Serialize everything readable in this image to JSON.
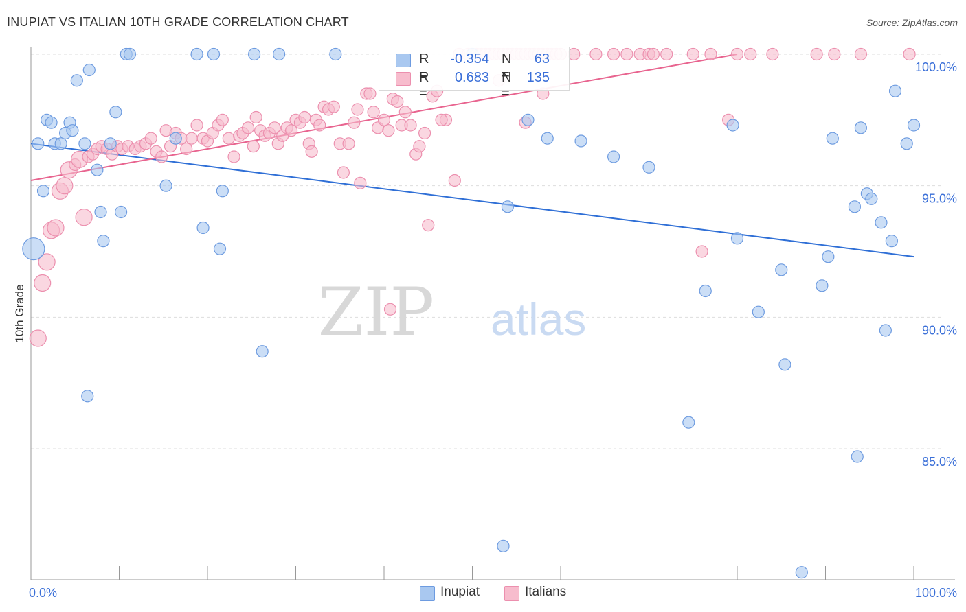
{
  "title": "INUPIAT VS ITALIAN 10TH GRADE CORRELATION CHART",
  "source": "Source: ZipAtlas.com",
  "colors": {
    "inupiat_fill": "#a9c8f0",
    "inupiat_stroke": "#6d9be0",
    "inupiat_line": "#2f6fd6",
    "italians_fill": "#f7bccd",
    "italians_stroke": "#ec8fae",
    "italians_line": "#e8648f",
    "axis_label": "#3a6fd8",
    "grid": "#dddddd"
  },
  "legend": {
    "rows": [
      {
        "r_label": "R =",
        "r_value": "-0.354",
        "n_label": "N =",
        "n_value": "63"
      },
      {
        "r_label": "R =",
        "r_value": "0.683",
        "n_label": "N =",
        "n_value": "135"
      }
    ]
  },
  "bottom_legend": {
    "items": [
      "Inupiat",
      "Italians"
    ]
  },
  "watermark": {
    "part1": "ZIP",
    "part2": "atlas"
  },
  "chart_data": {
    "type": "scatter",
    "title": "INUPIAT VS ITALIAN 10TH GRADE CORRELATION CHART",
    "xlabel": "",
    "ylabel": "10th Grade",
    "xlim": [
      0,
      100
    ],
    "ylim": [
      80.5,
      100.5
    ],
    "x_tick_labels": [
      "0.0%",
      "100.0%"
    ],
    "y_ticks": [
      85,
      90,
      95,
      100
    ],
    "y_tick_labels": [
      "85.0%",
      "90.0%",
      "95.0%",
      "100.0%"
    ],
    "grid": true,
    "series": [
      {
        "name": "Inupiat",
        "R": -0.354,
        "N": 63,
        "trend": [
          [
            0,
            96.6
          ],
          [
            100,
            92.3
          ]
        ],
        "points": [
          [
            0.3,
            92.6,
            3
          ],
          [
            0.8,
            96.6,
            1
          ],
          [
            1.4,
            94.8,
            1
          ],
          [
            1.8,
            97.5,
            1
          ],
          [
            2.3,
            97.4,
            1
          ],
          [
            2.7,
            96.6,
            1
          ],
          [
            3.4,
            96.6,
            1
          ],
          [
            3.9,
            97.0,
            1
          ],
          [
            4.4,
            97.4,
            1
          ],
          [
            4.7,
            97.1,
            1
          ],
          [
            5.2,
            99.0,
            1
          ],
          [
            6.1,
            96.6,
            1
          ],
          [
            6.4,
            87.0,
            1
          ],
          [
            6.6,
            99.4,
            1
          ],
          [
            7.5,
            95.6,
            1
          ],
          [
            7.9,
            94.0,
            1
          ],
          [
            8.2,
            92.9,
            1
          ],
          [
            9.0,
            96.6,
            1
          ],
          [
            9.6,
            97.8,
            1
          ],
          [
            10.2,
            94.0,
            1
          ],
          [
            10.8,
            100.0,
            1
          ],
          [
            11.2,
            100.0,
            1
          ],
          [
            15.3,
            95.0,
            1
          ],
          [
            16.4,
            96.8,
            1
          ],
          [
            18.8,
            100.0,
            1
          ],
          [
            19.5,
            93.4,
            1
          ],
          [
            20.7,
            100.0,
            1
          ],
          [
            21.4,
            92.6,
            1
          ],
          [
            21.7,
            94.8,
            1
          ],
          [
            25.3,
            100.0,
            1
          ],
          [
            26.2,
            88.7,
            1
          ],
          [
            28.1,
            100.0,
            1
          ],
          [
            34.5,
            100.0,
            1
          ],
          [
            50.0,
            100.0,
            1
          ],
          [
            53.5,
            81.3,
            1
          ],
          [
            54.0,
            94.2,
            1
          ],
          [
            56.3,
            97.5,
            1
          ],
          [
            58.5,
            96.8,
            1
          ],
          [
            62.3,
            96.7,
            1
          ],
          [
            66.0,
            96.1,
            1
          ],
          [
            70.0,
            95.7,
            1
          ],
          [
            74.5,
            86.0,
            1
          ],
          [
            76.4,
            91.0,
            1
          ],
          [
            79.5,
            97.3,
            1
          ],
          [
            80.0,
            93.0,
            1
          ],
          [
            82.4,
            90.2,
            1
          ],
          [
            85.0,
            91.8,
            1
          ],
          [
            85.4,
            88.2,
            1
          ],
          [
            87.3,
            80.3,
            1
          ],
          [
            89.6,
            91.2,
            1
          ],
          [
            90.3,
            92.3,
            1
          ],
          [
            90.8,
            96.8,
            1
          ],
          [
            93.3,
            94.2,
            1
          ],
          [
            93.6,
            84.7,
            1
          ],
          [
            94.0,
            97.2,
            1
          ],
          [
            94.7,
            94.7,
            1
          ],
          [
            95.2,
            94.5,
            1
          ],
          [
            96.3,
            93.6,
            1
          ],
          [
            96.8,
            89.5,
            1
          ],
          [
            97.5,
            92.9,
            1
          ],
          [
            97.9,
            98.6,
            1
          ],
          [
            99.2,
            96.6,
            1
          ],
          [
            100.0,
            97.3,
            1
          ]
        ]
      },
      {
        "name": "Italians",
        "R": 0.683,
        "N": 135,
        "trend": [
          [
            0,
            95.2
          ],
          [
            80,
            100.0
          ]
        ],
        "points": [
          [
            0.8,
            89.2,
            2
          ],
          [
            1.3,
            91.3,
            2
          ],
          [
            1.8,
            92.1,
            2
          ],
          [
            2.3,
            93.3,
            2
          ],
          [
            2.8,
            93.4,
            2
          ],
          [
            3.3,
            94.8,
            2
          ],
          [
            3.8,
            95.0,
            2
          ],
          [
            4.3,
            95.6,
            2
          ],
          [
            5.0,
            95.8,
            1
          ],
          [
            5.5,
            96.0,
            2
          ],
          [
            6.0,
            93.8,
            2
          ],
          [
            6.5,
            96.1,
            1
          ],
          [
            7.0,
            96.2,
            1
          ],
          [
            7.5,
            96.4,
            1
          ],
          [
            8.0,
            96.5,
            1
          ],
          [
            8.6,
            96.4,
            1
          ],
          [
            9.2,
            96.2,
            1
          ],
          [
            9.8,
            96.5,
            1
          ],
          [
            10.3,
            96.4,
            1
          ],
          [
            11.0,
            96.5,
            1
          ],
          [
            11.8,
            96.4,
            1
          ],
          [
            12.4,
            96.5,
            1
          ],
          [
            13.0,
            96.6,
            1
          ],
          [
            13.6,
            96.8,
            1
          ],
          [
            14.2,
            96.3,
            1
          ],
          [
            14.8,
            96.1,
            1
          ],
          [
            15.3,
            97.1,
            1
          ],
          [
            15.8,
            96.5,
            1
          ],
          [
            16.4,
            97.0,
            1
          ],
          [
            17.0,
            96.8,
            1
          ],
          [
            17.6,
            96.4,
            1
          ],
          [
            18.2,
            96.8,
            1
          ],
          [
            18.8,
            97.3,
            1
          ],
          [
            19.5,
            96.8,
            1
          ],
          [
            20.0,
            96.7,
            1
          ],
          [
            20.6,
            97.0,
            1
          ],
          [
            21.2,
            97.3,
            1
          ],
          [
            21.7,
            97.5,
            1
          ],
          [
            22.4,
            96.8,
            1
          ],
          [
            23.0,
            96.1,
            1
          ],
          [
            23.6,
            96.9,
            1
          ],
          [
            24.0,
            97.0,
            1
          ],
          [
            24.6,
            97.2,
            1
          ],
          [
            25.2,
            96.5,
            1
          ],
          [
            25.5,
            97.6,
            1
          ],
          [
            26.0,
            97.1,
            1
          ],
          [
            26.5,
            96.9,
            1
          ],
          [
            27.0,
            97.0,
            1
          ],
          [
            27.6,
            97.2,
            1
          ],
          [
            28.0,
            96.6,
            1
          ],
          [
            28.5,
            96.9,
            1
          ],
          [
            29.0,
            97.2,
            1
          ],
          [
            29.5,
            97.1,
            1
          ],
          [
            30.0,
            97.5,
            1
          ],
          [
            30.5,
            97.4,
            1
          ],
          [
            31.0,
            97.6,
            1
          ],
          [
            31.5,
            96.6,
            1
          ],
          [
            31.8,
            96.3,
            1
          ],
          [
            32.3,
            97.5,
            1
          ],
          [
            32.7,
            97.3,
            1
          ],
          [
            33.2,
            98.0,
            1
          ],
          [
            33.7,
            97.9,
            1
          ],
          [
            34.3,
            98.0,
            1
          ],
          [
            35.0,
            96.6,
            1
          ],
          [
            35.4,
            95.5,
            1
          ],
          [
            36.0,
            96.6,
            1
          ],
          [
            36.6,
            97.4,
            1
          ],
          [
            37.0,
            97.9,
            1
          ],
          [
            37.3,
            95.1,
            1
          ],
          [
            38.0,
            98.5,
            1
          ],
          [
            38.4,
            98.5,
            1
          ],
          [
            38.8,
            97.8,
            1
          ],
          [
            39.3,
            97.2,
            1
          ],
          [
            40.0,
            97.5,
            1
          ],
          [
            40.5,
            97.1,
            1
          ],
          [
            41.0,
            98.3,
            1
          ],
          [
            41.5,
            98.2,
            1
          ],
          [
            42.0,
            97.3,
            1
          ],
          [
            42.4,
            97.8,
            1
          ],
          [
            43.0,
            97.3,
            1
          ],
          [
            43.6,
            96.2,
            1
          ],
          [
            44.0,
            96.5,
            1
          ],
          [
            44.6,
            97.0,
            1
          ],
          [
            45.0,
            93.5,
            1
          ],
          [
            45.5,
            98.4,
            1
          ],
          [
            46.0,
            98.6,
            1
          ],
          [
            47.0,
            97.5,
            1
          ],
          [
            48.0,
            95.2,
            1
          ],
          [
            48.5,
            100.0,
            1
          ],
          [
            49.5,
            100.0,
            1
          ],
          [
            50.0,
            100.0,
            1
          ],
          [
            50.5,
            100.0,
            1
          ],
          [
            51.0,
            100.0,
            1
          ],
          [
            51.5,
            100.0,
            1
          ],
          [
            52.0,
            100.0,
            1
          ],
          [
            52.5,
            100.0,
            1
          ],
          [
            53.0,
            100.0,
            1
          ],
          [
            53.5,
            100.0,
            1
          ],
          [
            54.0,
            100.0,
            1
          ],
          [
            54.5,
            100.0,
            1
          ],
          [
            55.0,
            100.0,
            1
          ],
          [
            55.5,
            100.0,
            1
          ],
          [
            56.0,
            100.0,
            1
          ],
          [
            56.5,
            100.0,
            1
          ],
          [
            57.0,
            100.0,
            1
          ],
          [
            57.5,
            100.0,
            1
          ],
          [
            58.0,
            100.0,
            1
          ],
          [
            58.5,
            100.0,
            1
          ],
          [
            59.0,
            100.0,
            1
          ],
          [
            59.5,
            100.0,
            1
          ],
          [
            60.0,
            100.0,
            1
          ],
          [
            61.5,
            100.0,
            1
          ],
          [
            64.0,
            100.0,
            1
          ],
          [
            66.0,
            100.0,
            1
          ],
          [
            67.5,
            100.0,
            1
          ],
          [
            69.0,
            100.0,
            1
          ],
          [
            70.0,
            100.0,
            1
          ],
          [
            70.5,
            100.0,
            1
          ],
          [
            72.0,
            100.0,
            1
          ],
          [
            75.0,
            100.0,
            1
          ],
          [
            77.0,
            100.0,
            1
          ],
          [
            79.0,
            97.5,
            1
          ],
          [
            80.0,
            100.0,
            1
          ],
          [
            81.5,
            100.0,
            1
          ],
          [
            84.0,
            100.0,
            1
          ],
          [
            89.0,
            100.0,
            1
          ],
          [
            91.0,
            100.0,
            1
          ],
          [
            94.0,
            100.0,
            1
          ],
          [
            99.5,
            100.0,
            1
          ],
          [
            76.0,
            92.5,
            1
          ],
          [
            40.7,
            90.3,
            1
          ],
          [
            46.5,
            97.5,
            1
          ],
          [
            53.0,
            99.0,
            1
          ],
          [
            56.0,
            97.4,
            1
          ],
          [
            58.0,
            98.5,
            1
          ]
        ]
      }
    ]
  }
}
